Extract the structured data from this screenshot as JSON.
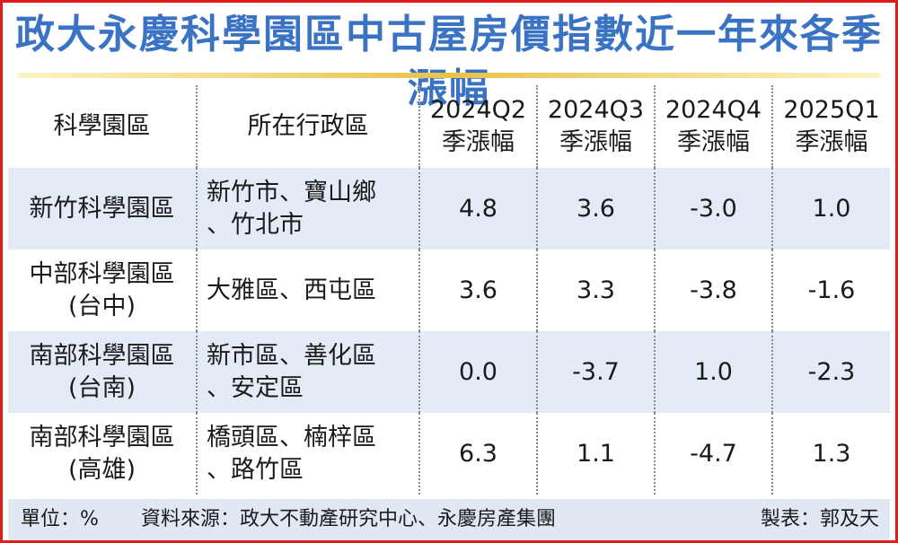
{
  "title": "政大永慶科學園區中古屋房價指數近一年來各季漲幅",
  "headers": {
    "park": "科學園區",
    "district": "所在行政區",
    "q1_line1": "2024Q2",
    "q1_line2": "季漲幅",
    "q2_line1": "2024Q3",
    "q2_line2": "季漲幅",
    "q3_line1": "2024Q4",
    "q3_line2": "季漲幅",
    "q4_line1": "2025Q1",
    "q4_line2": "季漲幅"
  },
  "rows": [
    {
      "park_line1": "新竹科學園區",
      "park_line2": "",
      "district_line1": "新竹市、寶山鄉",
      "district_line2": "、竹北市",
      "v1": "4.8",
      "v2": "3.6",
      "v3": "-3.0",
      "v4": "1.0"
    },
    {
      "park_line1": "中部科學園區",
      "park_line2": "(台中)",
      "district_line1": "大雅區、西屯區",
      "district_line2": "",
      "v1": "3.6",
      "v2": "3.3",
      "v3": "-3.8",
      "v4": "-1.6"
    },
    {
      "park_line1": "南部科學園區",
      "park_line2": "(台南)",
      "district_line1": "新市區、善化區",
      "district_line2": "、安定區",
      "v1": "0.0",
      "v2": "-3.7",
      "v3": "1.0",
      "v4": "-2.3"
    },
    {
      "park_line1": "南部科學園區",
      "park_line2": "(高雄)",
      "district_line1": "橋頭區、楠梓區",
      "district_line2": "、路竹區",
      "v1": "6.3",
      "v2": "1.1",
      "v3": "-4.7",
      "v4": "1.3"
    }
  ],
  "footer": {
    "unit": "單位：%",
    "source": "資料來源：政大不動產研究中心、永慶房產集團",
    "maker": "製表：郭及天"
  },
  "colors": {
    "title": "#3b73c4",
    "border": "#e11a1a",
    "row_shade": "#e3ecf6",
    "footer_bg": "#dfe8f3"
  }
}
